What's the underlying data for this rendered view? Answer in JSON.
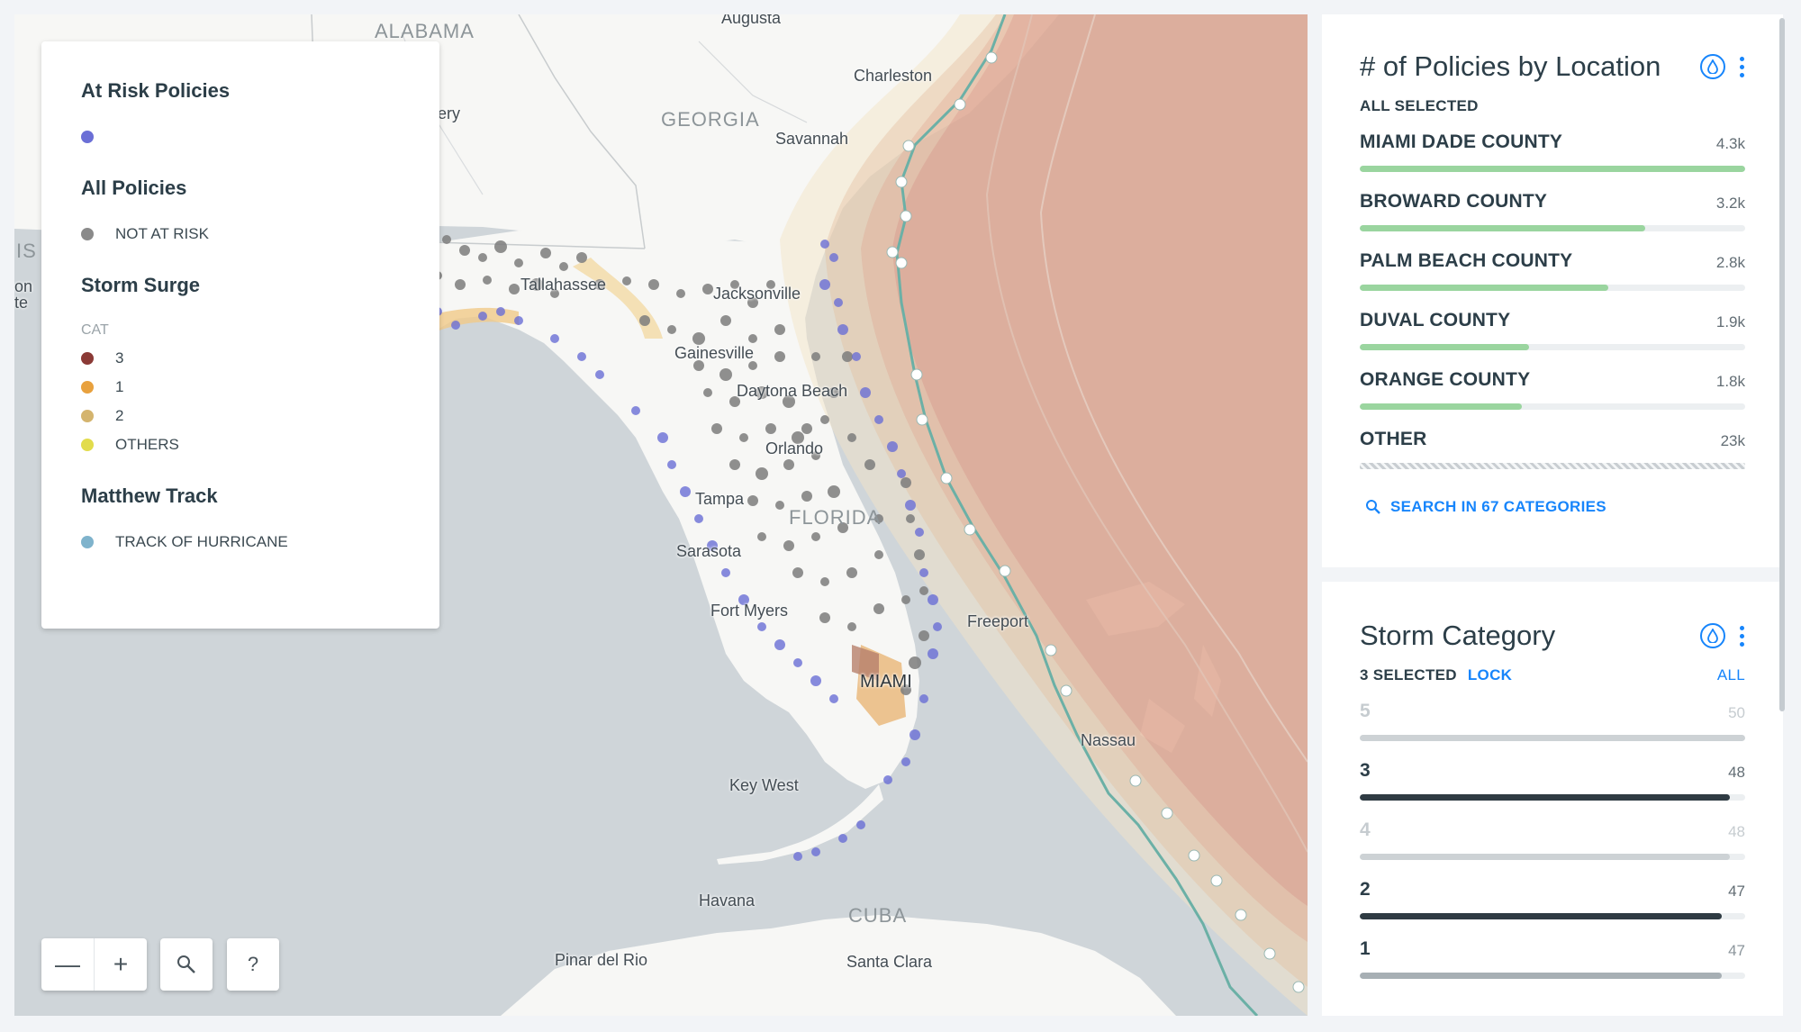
{
  "map": {
    "place_labels": {
      "alabama": "ALABAMA",
      "georgia": "GEORGIA",
      "florida": "FLORIDA",
      "cuba": "CUBA",
      "augusta": "Augusta",
      "charleston": "Charleston",
      "savannah": "Savannah",
      "tallahassee": "Tallahassee",
      "jacksonville": "Jacksonville",
      "gainesville": "Gainesville",
      "daytona": "Daytona Beach",
      "orlando": "Orlando",
      "tampa": "Tampa",
      "sarasota": "Sarasota",
      "fort_myers": "Fort Myers",
      "miami": "MIAMI",
      "key_west": "Key West",
      "freeport": "Freeport",
      "nassau": "Nassau",
      "havana": "Havana",
      "pinar": "Pinar del Rio",
      "santa_clara": "Santa Clara",
      "edge_ery": "ery",
      "edge_is": "IS",
      "edge_on": "on",
      "edge_te": "te"
    },
    "colors": {
      "water": "#cfd5d9",
      "land": "#f7f7f5",
      "track": "#6bb0a6"
    }
  },
  "legend": {
    "at_risk": {
      "title": "At Risk Policies",
      "color": "#6b6fd6"
    },
    "all_policies": {
      "title": "All Policies",
      "item": "NOT AT RISK",
      "color": "#8a8a8a"
    },
    "storm_surge": {
      "title": "Storm Surge",
      "subtitle": "CAT",
      "items": [
        {
          "label": "3",
          "color": "#8b3a36"
        },
        {
          "label": "1",
          "color": "#e8a13e"
        },
        {
          "label": "2",
          "color": "#d4b46e"
        },
        {
          "label": "OTHERS",
          "color": "#e2dc4c"
        }
      ]
    },
    "matthew": {
      "title": "Matthew Track",
      "item": "TRACK OF HURRICANE",
      "color": "#7fb3cc"
    }
  },
  "controls": {
    "zoom_out": "—",
    "zoom_in": "+",
    "help": "?"
  },
  "policies_widget": {
    "title": "# of Policies by Location",
    "selection": "ALL SELECTED",
    "categories": [
      {
        "name": "MIAMI DADE COUNTY",
        "value": "4.3k",
        "fraction": 1.0
      },
      {
        "name": "BROWARD COUNTY",
        "value": "3.2k",
        "fraction": 0.74
      },
      {
        "name": "PALM BEACH COUNTY",
        "value": "2.8k",
        "fraction": 0.645
      },
      {
        "name": "DUVAL COUNTY",
        "value": "1.9k",
        "fraction": 0.44
      },
      {
        "name": "ORANGE COUNTY",
        "value": "1.8k",
        "fraction": 0.42
      },
      {
        "name": "OTHER",
        "value": "23k",
        "fraction": 1.0
      }
    ],
    "search_label": "SEARCH IN 67 CATEGORIES"
  },
  "storm_widget": {
    "title": "Storm Category",
    "selection": "3 SELECTED",
    "lock_label": "LOCK",
    "all_label": "ALL",
    "categories": [
      {
        "name": "5",
        "value": "50",
        "fraction": 1.0,
        "state": "off"
      },
      {
        "name": "3",
        "value": "48",
        "fraction": 0.96,
        "state": "on"
      },
      {
        "name": "4",
        "value": "48",
        "fraction": 0.96,
        "state": "off"
      },
      {
        "name": "2",
        "value": "47",
        "fraction": 0.94,
        "state": "on"
      },
      {
        "name": "1",
        "value": "47",
        "fraction": 0.94,
        "state": "mid"
      }
    ]
  }
}
